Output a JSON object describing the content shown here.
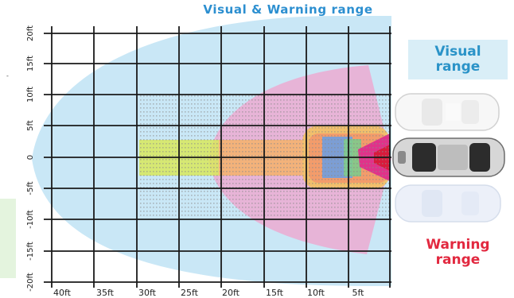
{
  "title": "Visual & Warning range",
  "legend": {
    "visual_label": "Visual\nrange",
    "warning_label": "Warning\nrange"
  },
  "axes": {
    "x_ticks": [
      "40ft",
      "35ft",
      "30ft",
      "25ft",
      "20ft",
      "15ft",
      "10ft",
      "5ft"
    ],
    "y_ticks": [
      "20ft",
      "15ft",
      "10ft",
      "5ft",
      "0",
      "-5ft",
      "-10ft",
      "-15ft",
      "-20ft"
    ]
  },
  "colors": {
    "visual_zone": "#bfe3f5",
    "warning_zone": "#f0a3cc",
    "visual_text": "#2a93c8",
    "warning_text": "#e2283f",
    "title_text": "#2c8fd0",
    "grid_line": "#1a1a1a"
  },
  "cars": [
    {
      "name": "car-top-faded"
    },
    {
      "name": "car-middle-dark"
    },
    {
      "name": "car-bottom-faded"
    }
  ]
}
